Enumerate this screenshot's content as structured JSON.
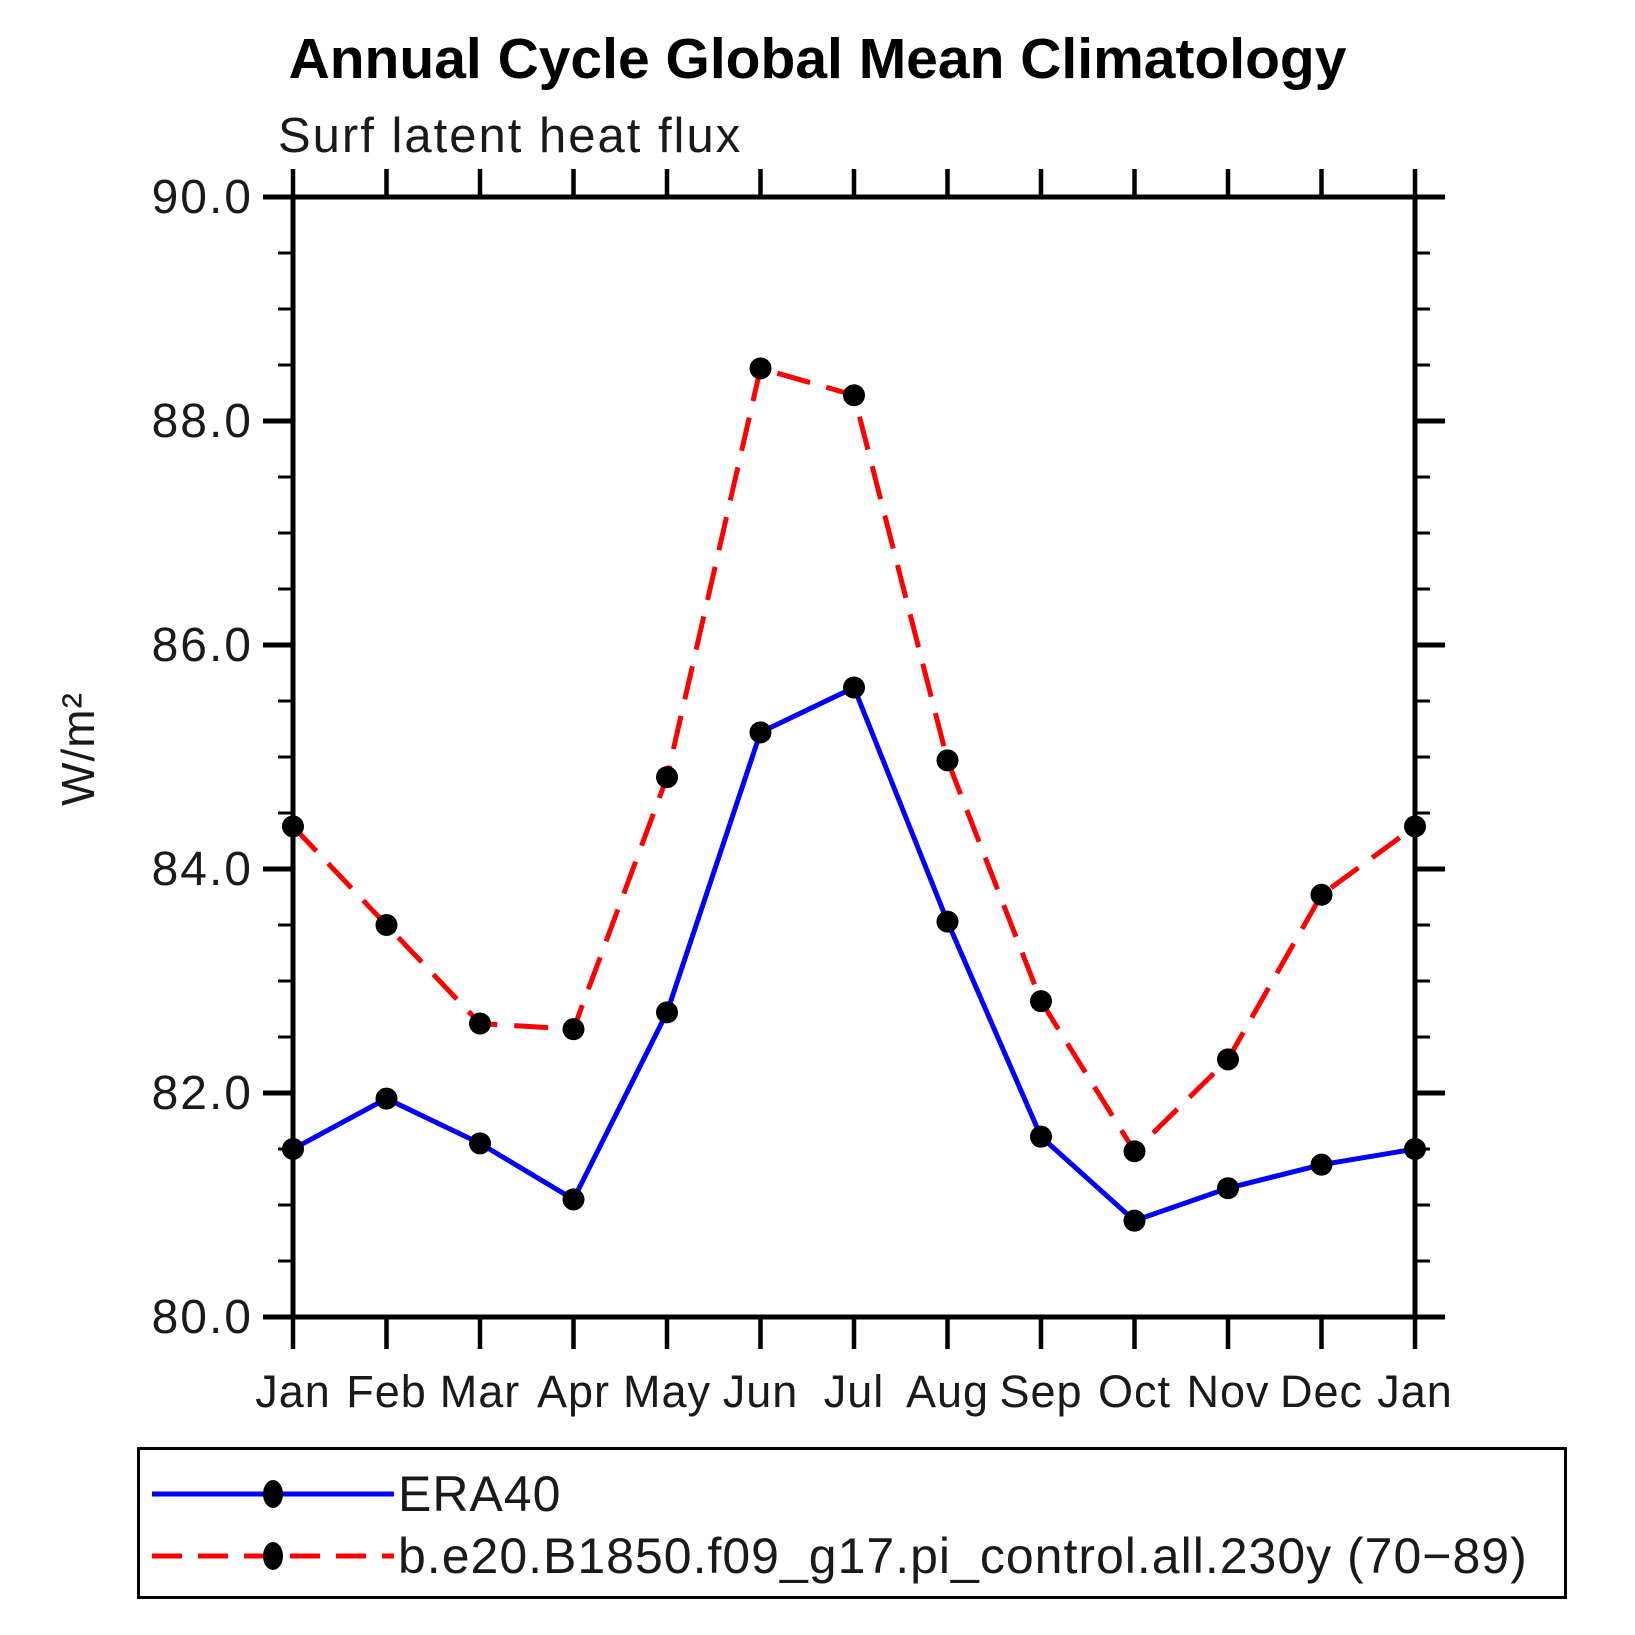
{
  "header": {
    "title": "Annual Cycle Global Mean Climatology",
    "subtitle": "Surf latent heat flux"
  },
  "y_axis_label": "W/m²",
  "legend": {
    "items": [
      {
        "label": "ERA40",
        "color": "#0000ff",
        "style": "solid",
        "marker_color": "#000000"
      },
      {
        "label": "b.e20.B1850.f09_g17.pi_control.all.230y (70−89)",
        "color": "#ff0000",
        "style": "dashed",
        "marker_color": "#000000"
      }
    ]
  },
  "chart_data": {
    "type": "line",
    "title": "Annual Cycle Global Mean Climatology",
    "subtitle": "Surf latent heat flux",
    "ylabel": "W/m²",
    "xlabel": "",
    "categories": [
      "Jan",
      "Feb",
      "Mar",
      "Apr",
      "May",
      "Jun",
      "Jul",
      "Aug",
      "Sep",
      "Oct",
      "Nov",
      "Dec",
      "Jan"
    ],
    "ylim": [
      80.0,
      90.0
    ],
    "y_major_step": 2.0,
    "y_minor_step": 0.5,
    "grid": false,
    "legend_position": "bottom",
    "y_ticks": [
      {
        "value": 80.0,
        "label": "80.0"
      },
      {
        "value": 82.0,
        "label": "82.0"
      },
      {
        "value": 84.0,
        "label": "84.0"
      },
      {
        "value": 86.0,
        "label": "86.0"
      },
      {
        "value": 88.0,
        "label": "88.0"
      },
      {
        "value": 90.0,
        "label": "90.0"
      }
    ],
    "series": [
      {
        "name": "ERA40",
        "color": "#0000ff",
        "line_style": "solid",
        "marker": "filled-circle",
        "marker_color": "#000000",
        "values": [
          81.5,
          81.95,
          81.55,
          81.05,
          82.72,
          85.22,
          85.62,
          83.53,
          81.61,
          80.86,
          81.15,
          81.36,
          81.5
        ]
      },
      {
        "name": "b.e20.B1850.f09_g17.pi_control.all.230y (70−89)",
        "color": "#ff0000",
        "line_style": "dashed",
        "marker": "filled-circle",
        "marker_color": "#000000",
        "values": [
          84.38,
          83.5,
          82.62,
          82.57,
          84.82,
          88.47,
          88.23,
          84.97,
          82.82,
          81.48,
          82.3,
          83.77,
          84.38
        ]
      }
    ]
  }
}
